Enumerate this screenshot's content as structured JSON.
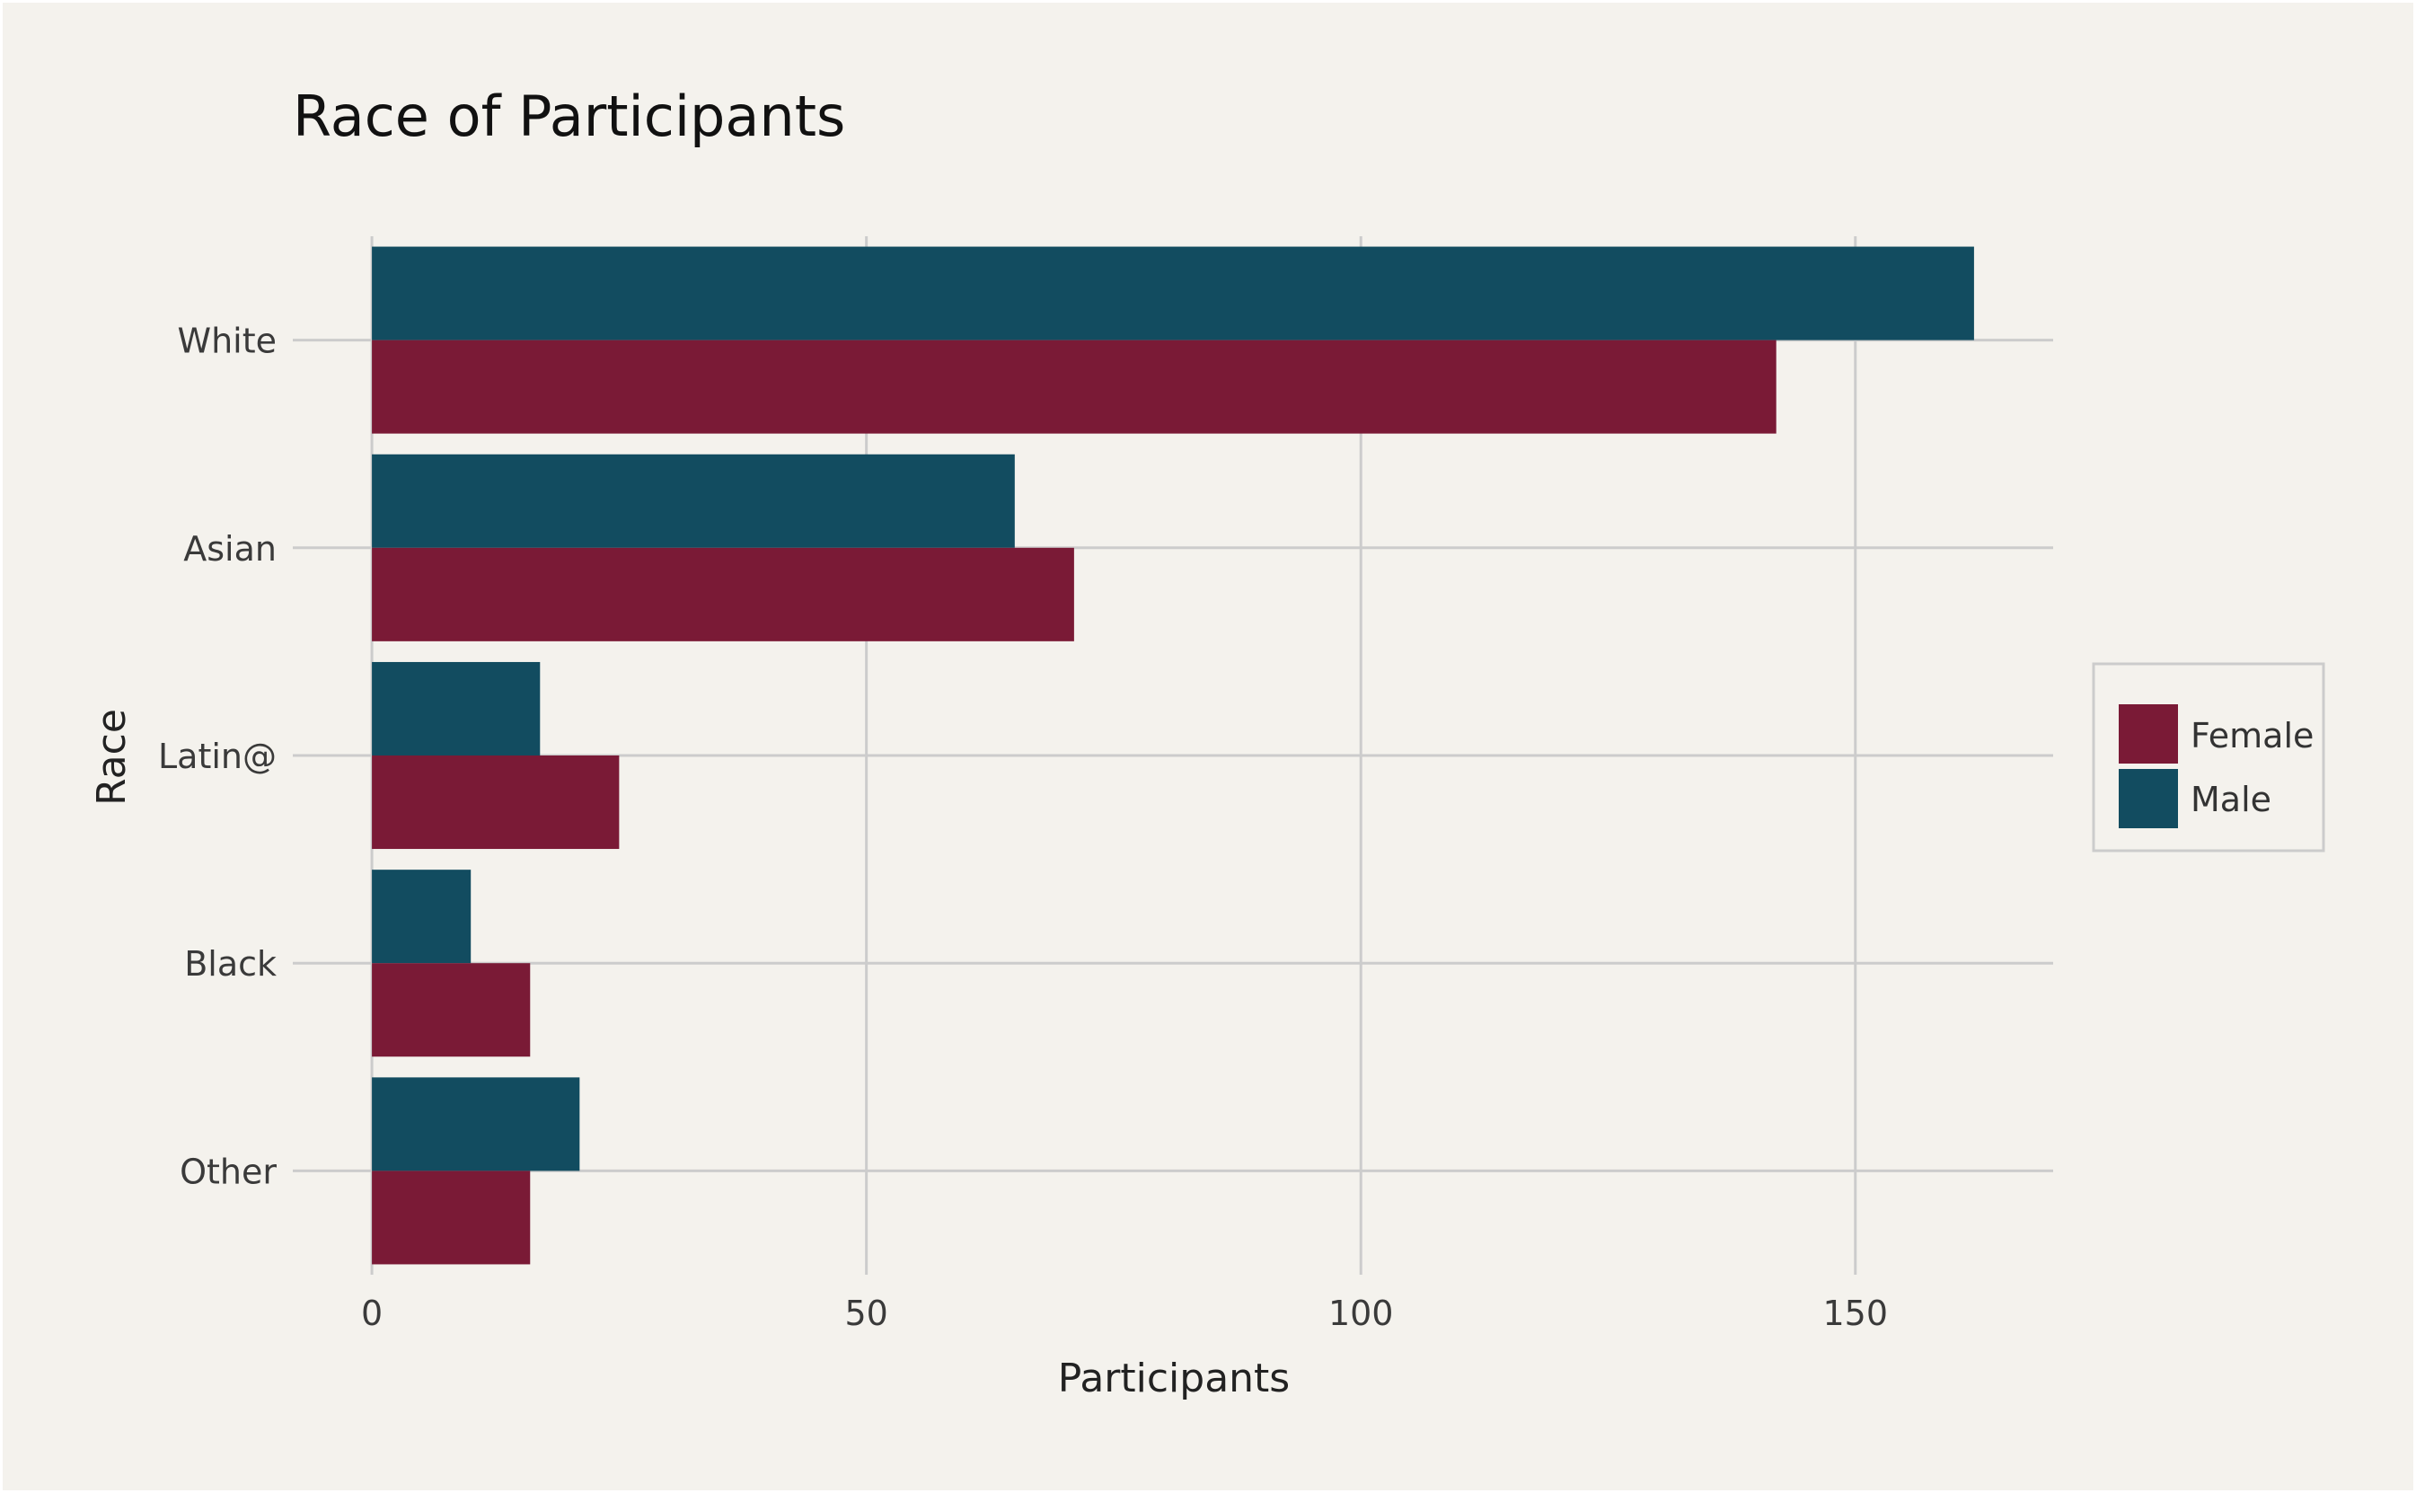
{
  "chart_data": {
    "type": "bar",
    "orientation": "horizontal",
    "title": "Race of Participants",
    "xlabel": "Participants",
    "ylabel": "Race",
    "categories": [
      "White",
      "Asian",
      "Latin@",
      "Black",
      "Other"
    ],
    "series": [
      {
        "name": "Female",
        "color": "#7a1a36",
        "values": [
          142,
          71,
          25,
          16,
          16
        ]
      },
      {
        "name": "Male",
        "color": "#124c60",
        "values": [
          162,
          65,
          17,
          10,
          21
        ]
      }
    ],
    "xlim": [
      -8,
      170
    ],
    "xticks": [
      0,
      50,
      100,
      150
    ],
    "grid": true,
    "legend_position": "right",
    "gridline_color": "#cccccc",
    "background_color": "#f4f2ed"
  }
}
